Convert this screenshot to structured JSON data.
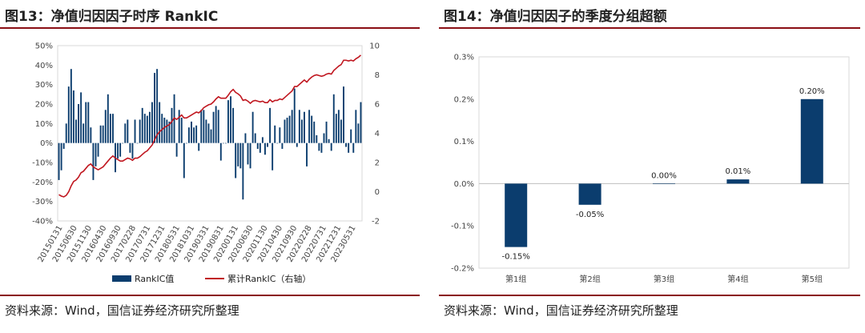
{
  "colors": {
    "bar": "#0b3d6e",
    "line": "#c0161f",
    "rule": "#8a0e14"
  },
  "panel1": {
    "title": "图13：净值归因因子时序 RankIC",
    "source": "资料来源：Wind，国信证券经济研究所整理"
  },
  "panel2": {
    "title": "图14：净值归因因子的季度分组超额",
    "source": "资料来源：Wind，国信证券经济研究所整理"
  },
  "chart_data": [
    {
      "type": "bar+line",
      "title": "净值归因因子时序 RankIC",
      "left_axis": {
        "ylim": [
          -40,
          50
        ],
        "ticks": [
          -40,
          -30,
          -20,
          -10,
          0,
          10,
          20,
          30,
          40,
          50
        ],
        "format": "%"
      },
      "right_axis": {
        "ylim": [
          -2,
          10
        ],
        "ticks": [
          -2,
          0,
          2,
          4,
          6,
          8,
          10
        ]
      },
      "x_tick_labels": [
        "20150131",
        "20150630",
        "20151130",
        "20160430",
        "20160930",
        "20170228",
        "20170731",
        "20171231",
        "20180531",
        "20181031",
        "20190331",
        "20190831",
        "20200131",
        "20200630",
        "20201130",
        "20210430",
        "20210930",
        "20220228",
        "20220731",
        "20221231",
        "20230531"
      ],
      "legend": [
        "RankIC值",
        "累计RankIC（右轴）"
      ],
      "series": [
        {
          "name": "RankIC值",
          "kind": "bar",
          "axis": "left",
          "values": [
            -19,
            -14,
            -3,
            10,
            29,
            38,
            27,
            12,
            20,
            26,
            10,
            21,
            21,
            8,
            -19,
            -12,
            -7,
            9,
            9,
            17,
            25,
            15,
            15,
            -15,
            -8,
            -7,
            0,
            10,
            12,
            -5,
            -8,
            12,
            0,
            12,
            18,
            15,
            14,
            16,
            21,
            36,
            38,
            21,
            15,
            13,
            12,
            11,
            18,
            25,
            -7,
            17,
            13,
            -18,
            0,
            8,
            11,
            8,
            9,
            -4,
            17,
            17,
            12,
            10,
            7,
            16,
            19,
            17,
            -9,
            0,
            0,
            22,
            24,
            18,
            -18,
            -12,
            -13,
            -29,
            5,
            -11,
            -13,
            16,
            5,
            -3,
            -5,
            3,
            -6,
            -2,
            18,
            -14,
            9,
            0,
            8,
            -3,
            12,
            13,
            14,
            17,
            28,
            -2,
            17,
            12,
            16,
            -12,
            17,
            14,
            11,
            4,
            -4,
            -5,
            5,
            11,
            2,
            -4,
            25,
            15,
            17,
            12,
            29,
            -2,
            -5,
            7,
            -5,
            17,
            10,
            21
          ]
        },
        {
          "name": "累计RankIC（右轴）",
          "kind": "line",
          "axis": "right",
          "values": [
            -0.2,
            -0.3,
            -0.35,
            -0.25,
            0.0,
            0.4,
            0.7,
            0.8,
            1.0,
            1.3,
            1.4,
            1.6,
            1.8,
            1.9,
            1.7,
            1.6,
            1.5,
            1.6,
            1.7,
            1.9,
            2.1,
            2.3,
            2.45,
            2.3,
            2.2,
            2.1,
            2.1,
            2.2,
            2.3,
            2.25,
            2.15,
            2.3,
            2.3,
            2.4,
            2.55,
            2.7,
            2.8,
            3.0,
            3.2,
            3.55,
            3.9,
            4.1,
            4.25,
            4.4,
            4.5,
            4.6,
            4.8,
            5.05,
            4.95,
            5.1,
            5.25,
            5.05,
            5.05,
            5.15,
            5.25,
            5.35,
            5.45,
            5.4,
            5.55,
            5.75,
            5.85,
            5.95,
            6.0,
            6.15,
            6.35,
            6.5,
            6.4,
            6.4,
            6.4,
            6.6,
            6.85,
            7.0,
            6.8,
            6.7,
            6.55,
            6.25,
            6.3,
            6.2,
            6.05,
            6.2,
            6.25,
            6.2,
            6.15,
            6.2,
            6.1,
            6.1,
            6.3,
            6.15,
            6.25,
            6.25,
            6.35,
            6.3,
            6.45,
            6.6,
            6.75,
            6.9,
            7.2,
            7.2,
            7.35,
            7.5,
            7.65,
            7.5,
            7.7,
            7.85,
            7.95,
            8.0,
            7.95,
            7.9,
            7.95,
            8.05,
            8.1,
            8.05,
            8.3,
            8.45,
            8.6,
            8.7,
            9.0,
            9.0,
            8.95,
            9.0,
            8.95,
            9.1,
            9.2,
            9.35
          ]
        }
      ]
    },
    {
      "type": "bar",
      "title": "净值归因因子的季度分组超额",
      "categories": [
        "第1组",
        "第2组",
        "第3组",
        "第4组",
        "第5组"
      ],
      "values": [
        -0.15,
        -0.05,
        0.0,
        0.01,
        0.2
      ],
      "data_labels": [
        "-0.15%",
        "-0.05%",
        "0.00%",
        "0.01%",
        "0.20%"
      ],
      "ylim": [
        -0.2,
        0.3
      ],
      "y_ticks": [
        "-0.2%",
        "-0.1%",
        "0.0%",
        "0.1%",
        "0.2%",
        "0.3%"
      ]
    }
  ]
}
